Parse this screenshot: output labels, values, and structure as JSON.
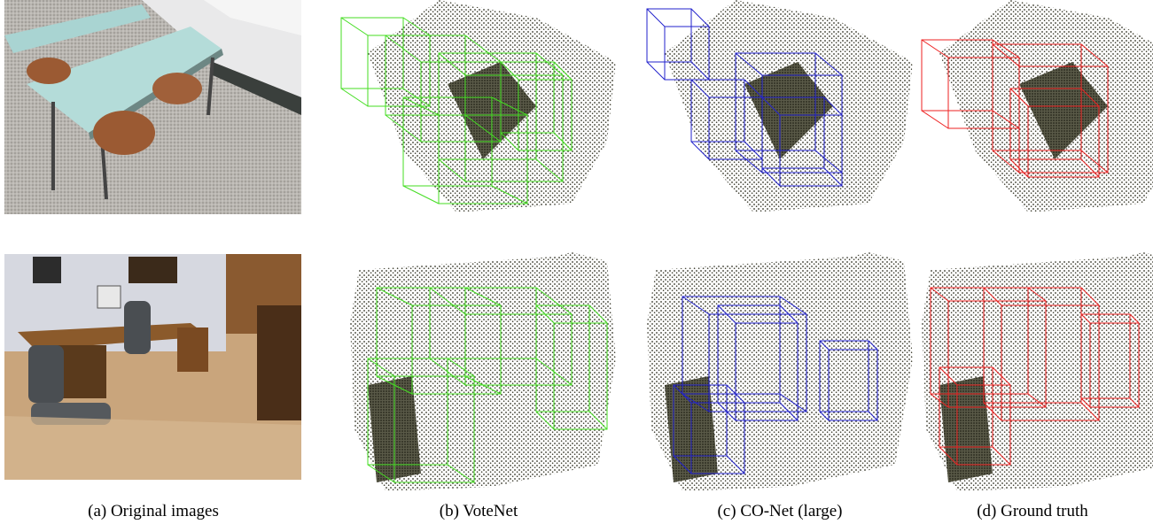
{
  "captions": [
    "(a) Original images",
    "(b) VoteNet",
    "(c) CO-Net (large)",
    "(d) Ground truth"
  ]
}
